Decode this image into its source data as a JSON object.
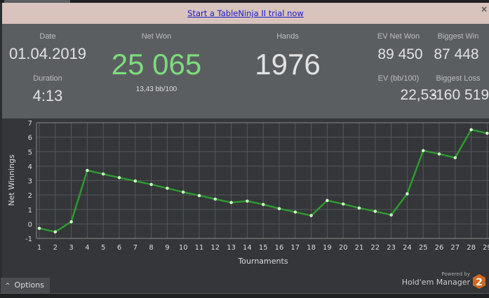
{
  "banner": {
    "link": "Start a TableNinja II trial now",
    "close": "×"
  },
  "stats": {
    "date_label": "Date",
    "date": "01.04.2019",
    "duration_label": "Duration",
    "duration": "4:13",
    "net_won_label": "Net Won",
    "net_won": "25 065",
    "bb100": "13,43 bb/100",
    "hands_label": "Hands",
    "hands": "1976",
    "ev_net_won_label": "EV Net Won",
    "ev_net_won": "89 450",
    "biggest_win_label": "Biggest Win",
    "biggest_win": "87 448",
    "ev_bb100_label": "EV (bb/100)",
    "ev_bb100": "22,53",
    "biggest_loss_label": "Biggest Loss",
    "biggest_loss": "-160 519"
  },
  "colors": {
    "net_won": "#7ddc7d",
    "line": "#2e9a2e",
    "point": "#d8ffd0"
  },
  "chart_data": {
    "type": "line",
    "xlabel": "Tournaments",
    "ylabel": "Net Winnings",
    "ylim": [
      -1,
      7
    ],
    "yticks": [
      -1,
      0,
      1,
      2,
      3,
      4,
      5,
      6,
      7
    ],
    "x": [
      1,
      2,
      3,
      4,
      5,
      6,
      7,
      8,
      9,
      10,
      11,
      12,
      13,
      14,
      15,
      16,
      17,
      18,
      19,
      20,
      21,
      22,
      23,
      24,
      25,
      26,
      27,
      28,
      29
    ],
    "values": [
      -0.3,
      -0.55,
      0.15,
      3.7,
      3.45,
      3.2,
      2.97,
      2.73,
      2.47,
      2.2,
      1.96,
      1.72,
      1.48,
      1.58,
      1.35,
      1.06,
      0.82,
      0.58,
      1.62,
      1.38,
      1.1,
      0.87,
      0.62,
      2.08,
      5.07,
      4.84,
      4.58,
      6.52,
      6.27
    ],
    "grid": true
  },
  "options": {
    "label": "Options",
    "icon": "^"
  },
  "branding": {
    "powered": "Powered by",
    "product": "Hold'em Manager",
    "logo": "2"
  }
}
